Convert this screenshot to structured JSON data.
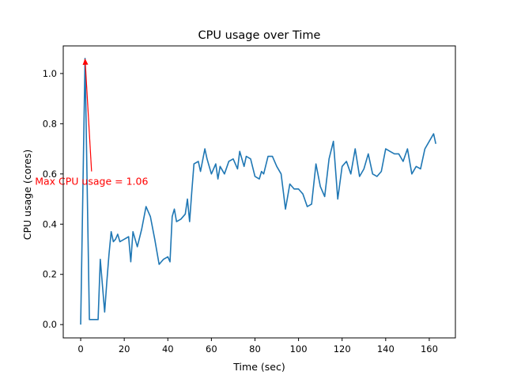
{
  "chart_data": {
    "type": "line",
    "title": "CPU usage over Time",
    "xlabel": "Time (sec)",
    "ylabel": "CPU usage (cores)",
    "xlim": [
      -8,
      172
    ],
    "ylim": [
      -0.053,
      1.11
    ],
    "xticks": [
      0,
      20,
      40,
      60,
      80,
      100,
      120,
      140,
      160
    ],
    "yticks": [
      0.0,
      0.2,
      0.4,
      0.6,
      0.8,
      1.0
    ],
    "xtick_labels": [
      "0",
      "20",
      "40",
      "60",
      "80",
      "100",
      "120",
      "140",
      "160"
    ],
    "ytick_labels": [
      "0.0",
      "0.2",
      "0.4",
      "0.6",
      "0.8",
      "1.0"
    ],
    "grid": false,
    "series": [
      {
        "color": "#1f77b4",
        "x": [
          0,
          2,
          4,
          6,
          8,
          9,
          11,
          12,
          13,
          14,
          15,
          16,
          17,
          18,
          20,
          22,
          23,
          24,
          26,
          28,
          30,
          31,
          32,
          34,
          36,
          37,
          38,
          40,
          41,
          42,
          43,
          44,
          46,
          48,
          49,
          50,
          51,
          52,
          54,
          55,
          57,
          58,
          60,
          62,
          63,
          64,
          66,
          68,
          70,
          72,
          73,
          75,
          76,
          78,
          80,
          82,
          83,
          84,
          86,
          88,
          90,
          92,
          94,
          96,
          98,
          100,
          102,
          104,
          106,
          108,
          110,
          112,
          114,
          116,
          118,
          120,
          122,
          124,
          126,
          128,
          130,
          132,
          134,
          136,
          138,
          140,
          142,
          144,
          146,
          148,
          150,
          152,
          154,
          156,
          158,
          160,
          162,
          163
        ],
        "values": [
          0.0,
          1.06,
          0.02,
          0.02,
          0.02,
          0.26,
          0.05,
          0.17,
          0.28,
          0.37,
          0.33,
          0.34,
          0.36,
          0.33,
          0.34,
          0.35,
          0.25,
          0.37,
          0.31,
          0.38,
          0.47,
          0.45,
          0.43,
          0.34,
          0.24,
          0.25,
          0.26,
          0.27,
          0.25,
          0.43,
          0.46,
          0.41,
          0.42,
          0.44,
          0.5,
          0.41,
          0.53,
          0.64,
          0.65,
          0.61,
          0.7,
          0.66,
          0.6,
          0.64,
          0.58,
          0.63,
          0.6,
          0.65,
          0.66,
          0.62,
          0.69,
          0.63,
          0.67,
          0.66,
          0.59,
          0.58,
          0.61,
          0.6,
          0.67,
          0.67,
          0.63,
          0.6,
          0.46,
          0.56,
          0.54,
          0.54,
          0.52,
          0.47,
          0.48,
          0.64,
          0.55,
          0.51,
          0.66,
          0.73,
          0.5,
          0.63,
          0.65,
          0.6,
          0.7,
          0.59,
          0.62,
          0.68,
          0.6,
          0.59,
          0.61,
          0.7,
          0.69,
          0.68,
          0.68,
          0.65,
          0.7,
          0.6,
          0.63,
          0.62,
          0.7,
          0.73,
          0.76,
          0.72
        ]
      }
    ],
    "annotation": {
      "text": "Max CPU usage = 1.06",
      "color": "#ff0000",
      "arrow_tip": [
        2,
        1.06
      ],
      "arrow_tail": [
        5,
        0.61
      ]
    }
  }
}
